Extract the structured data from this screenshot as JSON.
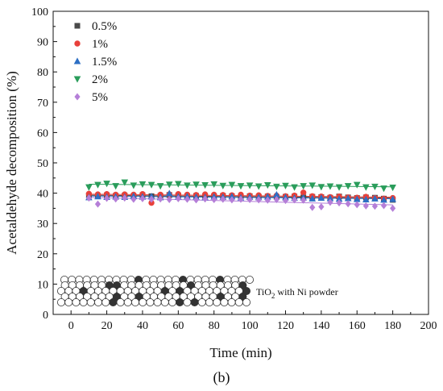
{
  "chart_data": {
    "type": "scatter",
    "title": "",
    "xlabel": "Time (min)",
    "ylabel": "Acetaldehyde decomposition (%)",
    "xlim": [
      -10,
      200
    ],
    "ylim": [
      0,
      100
    ],
    "x_ticks": [
      0,
      20,
      40,
      60,
      80,
      100,
      120,
      140,
      160,
      180,
      200
    ],
    "y_ticks": [
      0,
      10,
      20,
      30,
      40,
      50,
      60,
      70,
      80,
      90,
      100
    ],
    "legend_position": "top-left",
    "grid": false,
    "x": [
      10,
      15,
      20,
      25,
      30,
      35,
      40,
      45,
      50,
      55,
      60,
      65,
      70,
      75,
      80,
      85,
      90,
      95,
      100,
      105,
      110,
      115,
      120,
      125,
      130,
      135,
      140,
      145,
      150,
      155,
      160,
      165,
      170,
      175,
      180
    ],
    "series": [
      {
        "name": "0.5%",
        "marker": "square",
        "color": "#4a4a4a",
        "values": [
          39.2,
          39.0,
          39.3,
          39.1,
          39.2,
          39.0,
          39.3,
          39.0,
          39.1,
          39.4,
          39.2,
          39.0,
          39.1,
          39.0,
          38.9,
          39.1,
          39.0,
          38.8,
          39.0,
          38.8,
          38.9,
          38.7,
          38.8,
          38.9,
          38.6,
          38.8,
          38.7,
          38.5,
          38.9,
          38.6,
          38.4,
          38.6,
          38.5,
          38.2,
          37.8
        ]
      },
      {
        "name": "1%",
        "marker": "circle",
        "color": "#e8403a",
        "values": [
          39.8,
          39.6,
          39.7,
          39.5,
          39.6,
          39.5,
          39.7,
          36.8,
          39.5,
          39.6,
          39.7,
          39.5,
          39.4,
          39.6,
          39.5,
          39.4,
          39.3,
          39.5,
          39.2,
          39.3,
          39.1,
          39.2,
          39.0,
          39.2,
          40.2,
          39.0,
          38.9,
          38.7,
          38.9,
          38.6,
          38.5,
          38.8,
          38.4,
          38.2,
          38.4
        ]
      },
      {
        "name": "1.5%",
        "marker": "triangle-up",
        "color": "#2d6fc4",
        "values": [
          38.6,
          38.9,
          38.7,
          38.8,
          38.7,
          39.0,
          38.8,
          38.9,
          38.6,
          39.9,
          38.8,
          38.9,
          38.7,
          38.6,
          38.8,
          38.7,
          38.9,
          38.5,
          38.7,
          38.6,
          38.8,
          39.5,
          38.6,
          38.4,
          38.5,
          38.2,
          38.4,
          38.3,
          38.1,
          38.3,
          38.0,
          37.9,
          38.2,
          37.8,
          38.0
        ]
      },
      {
        "name": "2%",
        "marker": "triangle-down",
        "color": "#2a9d5b",
        "values": [
          42.0,
          42.8,
          43.2,
          42.4,
          43.6,
          42.6,
          43.0,
          42.8,
          42.4,
          42.9,
          43.1,
          42.6,
          42.9,
          42.7,
          43.0,
          42.5,
          42.8,
          42.4,
          42.6,
          42.3,
          42.7,
          42.2,
          42.5,
          42.0,
          42.4,
          42.6,
          42.1,
          42.3,
          42.0,
          42.4,
          42.8,
          42.0,
          42.2,
          41.6,
          41.9
        ]
      },
      {
        "name": "5%",
        "marker": "diamond",
        "color": "#b57fd8",
        "values": [
          38.4,
          36.4,
          38.3,
          38.1,
          38.4,
          38.0,
          38.2,
          38.0,
          38.1,
          37.9,
          38.2,
          38.0,
          37.8,
          38.1,
          37.9,
          38.0,
          37.8,
          38.0,
          37.9,
          37.8,
          37.7,
          37.9,
          37.6,
          37.8,
          37.7,
          35.3,
          35.5,
          37.0,
          36.8,
          36.5,
          36.2,
          35.8,
          35.7,
          35.9,
          35.0
        ]
      }
    ],
    "annotation": "TiO₂ with Ni powder"
  },
  "panel_label": "(b)"
}
